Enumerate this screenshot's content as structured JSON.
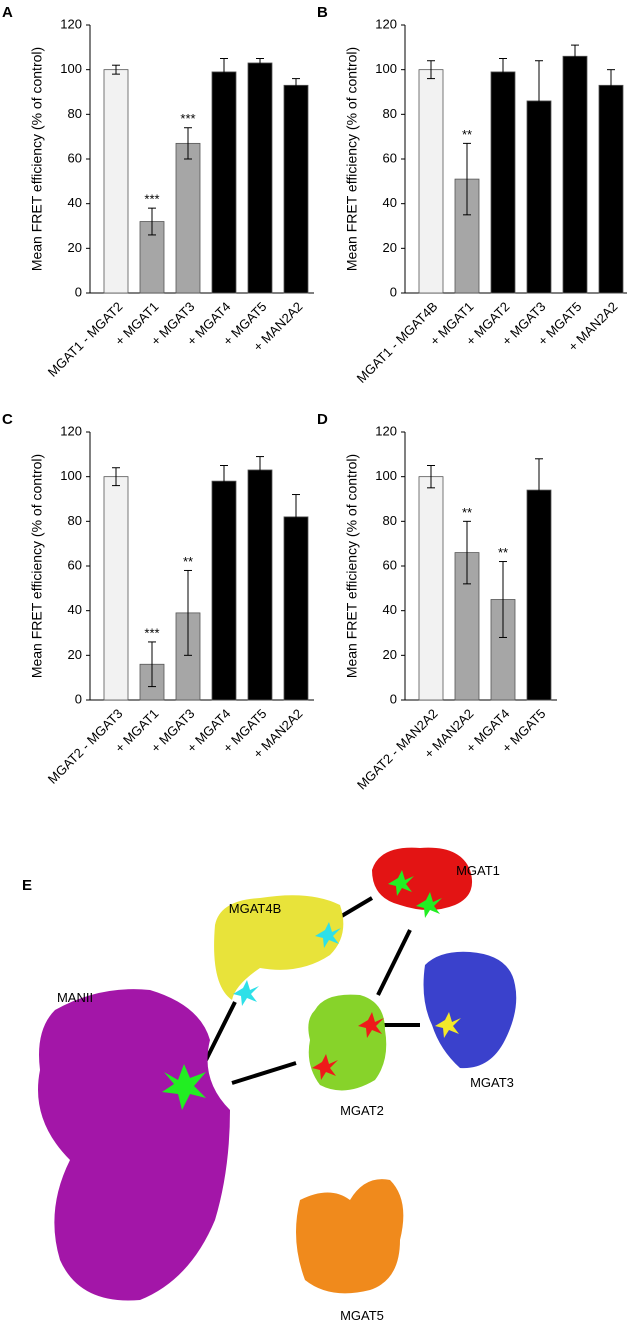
{
  "chart_data": [
    {
      "type": "bar",
      "panel": "A",
      "ylabel": "Mean FRET efficiency (% of control)",
      "categories": [
        "MGAT1 - MGAT2",
        "+ MGAT1",
        "+ MGAT3",
        "+ MGAT4",
        "+ MGAT5",
        "+ MAN2A2"
      ],
      "values": [
        100,
        32,
        67,
        99,
        103,
        93
      ],
      "errors": [
        2,
        6,
        7,
        6,
        2,
        3
      ],
      "annotations": [
        null,
        "***",
        "***",
        null,
        null,
        null
      ],
      "colors": [
        "#f2f2f2",
        "#a6a6a6",
        "#a6a6a6",
        "#000000",
        "#000000",
        "#000000"
      ],
      "ylim": [
        0,
        120
      ],
      "yticks": [
        0,
        20,
        40,
        60,
        80,
        100,
        120
      ]
    },
    {
      "type": "bar",
      "panel": "B",
      "ylabel": "Mean FRET efficiency (% of control)",
      "categories": [
        "MGAT1 - MGAT4B",
        "+ MGAT1",
        "+ MGAT2",
        "+ MGAT3",
        "+ MGAT5",
        "+ MAN2A2"
      ],
      "values": [
        100,
        51,
        99,
        86,
        106,
        93
      ],
      "errors": [
        4,
        16,
        6,
        18,
        5,
        7
      ],
      "annotations": [
        null,
        "**",
        null,
        null,
        null,
        null
      ],
      "colors": [
        "#f2f2f2",
        "#a6a6a6",
        "#000000",
        "#000000",
        "#000000",
        "#000000"
      ],
      "ylim": [
        0,
        120
      ],
      "yticks": [
        0,
        20,
        40,
        60,
        80,
        100,
        120
      ]
    },
    {
      "type": "bar",
      "panel": "C",
      "ylabel": "Mean FRET efficiency (% of control)",
      "categories": [
        "MGAT2 - MGAT3",
        "+ MGAT1",
        "+ MGAT3",
        "+ MGAT4",
        "+ MGAT5",
        "+ MAN2A2"
      ],
      "values": [
        100,
        16,
        39,
        98,
        103,
        82
      ],
      "errors": [
        4,
        10,
        19,
        7,
        6,
        10
      ],
      "annotations": [
        null,
        "***",
        "**",
        null,
        null,
        null
      ],
      "colors": [
        "#f2f2f2",
        "#a6a6a6",
        "#a6a6a6",
        "#000000",
        "#000000",
        "#000000"
      ],
      "ylim": [
        0,
        120
      ],
      "yticks": [
        0,
        20,
        40,
        60,
        80,
        100,
        120
      ]
    },
    {
      "type": "bar",
      "panel": "D",
      "ylabel": "Mean FRET efficiency (% of control)",
      "categories": [
        "MGAT2 - MAN2A2",
        "+ MAN2A2",
        "+ MGAT4",
        "+ MGAT5"
      ],
      "values": [
        100,
        66,
        45,
        94
      ],
      "errors": [
        5,
        14,
        17,
        14
      ],
      "annotations": [
        null,
        "**",
        "**",
        null
      ],
      "colors": [
        "#f2f2f2",
        "#a6a6a6",
        "#a6a6a6",
        "#000000"
      ],
      "ylim": [
        0,
        120
      ],
      "yticks": [
        0,
        20,
        40,
        60,
        80,
        100,
        120
      ]
    }
  ],
  "panel_e": {
    "label": "E",
    "proteins": [
      "MGAT1",
      "MGAT4B",
      "MANII",
      "MGAT3",
      "MGAT2",
      "MGAT5"
    ]
  }
}
